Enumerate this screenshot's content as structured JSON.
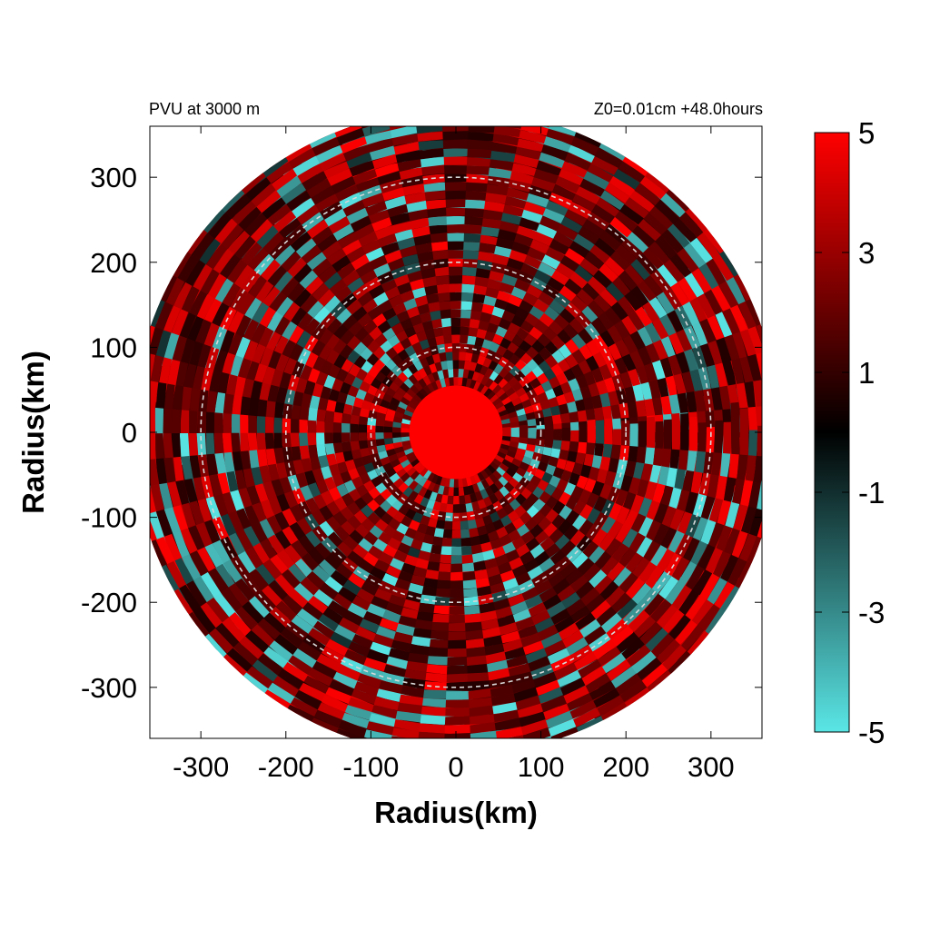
{
  "chart_data": {
    "type": "heatmap",
    "title_left": "PVU at  3000 m",
    "title_right": "Z0=0.01cm  +48.0hours",
    "xlabel": "Radius(km)",
    "ylabel": "Radius(km)",
    "xlim": [
      -360,
      360
    ],
    "ylim": [
      -360,
      360
    ],
    "x_ticks": [
      -300,
      -200,
      -100,
      0,
      100,
      200,
      300
    ],
    "y_ticks": [
      300,
      200,
      100,
      0,
      -100,
      -200,
      -300
    ],
    "x_tick_labels": [
      "-300",
      "-200",
      "-100",
      "0",
      "100",
      "200",
      "300"
    ],
    "y_tick_labels": [
      "300",
      "200",
      "100",
      "0",
      "-100",
      "-200",
      "-300"
    ],
    "domain_radius_km": 380,
    "range_rings_km": [
      100,
      200,
      300
    ],
    "core": {
      "radius_km": 55,
      "value": 5
    },
    "colorbar": {
      "min": -5,
      "max": 5,
      "ticks": [
        5,
        3,
        1,
        -1,
        -3,
        -5
      ],
      "tick_labels": [
        "5",
        "3",
        "1",
        "-1",
        "-3",
        "-5"
      ],
      "colors": [
        "#5ae6e6",
        "#000000",
        "#ff0000"
      ]
    }
  }
}
